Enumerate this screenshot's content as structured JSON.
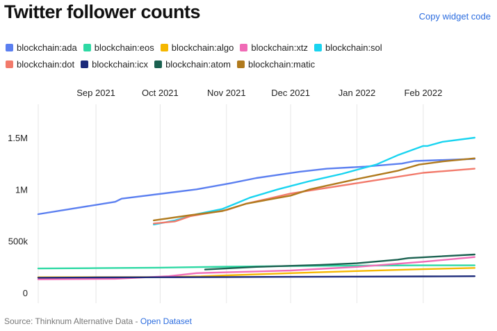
{
  "header": {
    "title": "Twitter follower counts",
    "copy_link": "Copy widget code"
  },
  "footer": {
    "source_text": "Source: Thinknum Alternative Data -",
    "source_link": "Open Dataset"
  },
  "chart_data": {
    "type": "line",
    "title": "Twitter follower counts",
    "xlabel": "",
    "ylabel": "",
    "grid": "vertical",
    "legend_position": "top-left",
    "x_range": [
      "2021-08-05",
      "2022-02-28"
    ],
    "ylim": [
      0,
      1800000
    ],
    "x_ticks": [
      {
        "date": "2021-09-01",
        "label": "Sep 2021"
      },
      {
        "date": "2021-10-01",
        "label": "Oct 2021"
      },
      {
        "date": "2021-11-01",
        "label": "Nov 2021"
      },
      {
        "date": "2021-12-01",
        "label": "Dec 2021"
      },
      {
        "date": "2022-01-01",
        "label": "Jan 2022"
      },
      {
        "date": "2022-02-01",
        "label": "Feb 2022"
      }
    ],
    "y_ticks": [
      {
        "value": 0,
        "label": "0"
      },
      {
        "value": 500000,
        "label": "500k"
      },
      {
        "value": 1000000,
        "label": "1M"
      },
      {
        "value": 1500000,
        "label": "1.5M"
      }
    ],
    "series": [
      {
        "name": "blockchain:ada",
        "color": "#5b7ff0",
        "points": [
          [
            "2021-08-05",
            760000
          ],
          [
            "2021-09-10",
            880000
          ],
          [
            "2021-09-13",
            910000
          ],
          [
            "2021-10-18",
            1000000
          ],
          [
            "2021-11-03",
            1060000
          ],
          [
            "2021-11-15",
            1110000
          ],
          [
            "2021-12-05",
            1170000
          ],
          [
            "2021-12-18",
            1200000
          ],
          [
            "2022-01-05",
            1220000
          ],
          [
            "2022-01-22",
            1250000
          ],
          [
            "2022-01-28",
            1275000
          ],
          [
            "2022-02-25",
            1295000
          ]
        ]
      },
      {
        "name": "blockchain:eos",
        "color": "#2ed9a4",
        "points": [
          [
            "2021-08-05",
            235000
          ],
          [
            "2021-09-01",
            238000
          ],
          [
            "2021-10-01",
            243000
          ],
          [
            "2021-11-01",
            252000
          ],
          [
            "2021-12-01",
            258000
          ],
          [
            "2022-01-01",
            262000
          ],
          [
            "2022-02-01",
            265000
          ],
          [
            "2022-02-25",
            265000
          ]
        ]
      },
      {
        "name": "blockchain:algo",
        "color": "#f5b700",
        "points": [
          [
            "2021-08-05",
            150000
          ],
          [
            "2021-10-01",
            152000
          ],
          [
            "2021-10-20",
            158000
          ],
          [
            "2021-11-01",
            168000
          ],
          [
            "2021-12-01",
            190000
          ],
          [
            "2022-01-01",
            210000
          ],
          [
            "2022-02-01",
            228000
          ],
          [
            "2022-02-25",
            240000
          ]
        ]
      },
      {
        "name": "blockchain:xtz",
        "color": "#f06bb6",
        "points": [
          [
            "2021-08-05",
            130000
          ],
          [
            "2021-09-10",
            135000
          ],
          [
            "2021-10-05",
            160000
          ],
          [
            "2021-10-18",
            190000
          ],
          [
            "2021-11-01",
            198000
          ],
          [
            "2021-12-01",
            215000
          ],
          [
            "2022-01-01",
            250000
          ],
          [
            "2022-02-01",
            300000
          ],
          [
            "2022-02-25",
            345000
          ]
        ]
      },
      {
        "name": "blockchain:sol",
        "color": "#19d4f0",
        "points": [
          [
            "2021-09-28",
            660000
          ],
          [
            "2021-10-08",
            700000
          ],
          [
            "2021-10-18",
            760000
          ],
          [
            "2021-10-30",
            810000
          ],
          [
            "2021-11-05",
            860000
          ],
          [
            "2021-11-12",
            920000
          ],
          [
            "2021-11-25",
            1000000
          ],
          [
            "2021-12-10",
            1080000
          ],
          [
            "2021-12-25",
            1150000
          ],
          [
            "2022-01-01",
            1190000
          ],
          [
            "2022-01-10",
            1240000
          ],
          [
            "2022-01-20",
            1330000
          ],
          [
            "2022-02-01",
            1420000
          ],
          [
            "2022-02-03",
            1420000
          ],
          [
            "2022-02-10",
            1460000
          ],
          [
            "2022-02-25",
            1500000
          ]
        ]
      },
      {
        "name": "blockchain:dot",
        "color": "#f27a6b",
        "points": [
          [
            "2021-09-28",
            670000
          ],
          [
            "2021-10-08",
            690000
          ],
          [
            "2021-10-15",
            740000
          ],
          [
            "2021-11-01",
            800000
          ],
          [
            "2021-11-10",
            860000
          ],
          [
            "2021-12-01",
            960000
          ],
          [
            "2022-01-01",
            1060000
          ],
          [
            "2022-02-01",
            1160000
          ],
          [
            "2022-02-25",
            1200000
          ]
        ]
      },
      {
        "name": "blockchain:icx",
        "color": "#1c2a7a",
        "points": [
          [
            "2021-08-05",
            145000
          ],
          [
            "2021-09-01",
            148000
          ],
          [
            "2021-10-01",
            150000
          ],
          [
            "2021-11-01",
            152000
          ],
          [
            "2021-12-01",
            154000
          ],
          [
            "2022-01-01",
            156000
          ],
          [
            "2022-02-01",
            158000
          ],
          [
            "2022-02-25",
            160000
          ]
        ]
      },
      {
        "name": "blockchain:atom",
        "color": "#1a6150",
        "points": [
          [
            "2021-10-22",
            225000
          ],
          [
            "2021-11-15",
            250000
          ],
          [
            "2021-12-15",
            270000
          ],
          [
            "2022-01-01",
            285000
          ],
          [
            "2022-01-20",
            320000
          ],
          [
            "2022-01-25",
            335000
          ],
          [
            "2022-02-25",
            370000
          ]
        ]
      },
      {
        "name": "blockchain:matic",
        "color": "#b07a1d",
        "points": [
          [
            "2021-09-28",
            700000
          ],
          [
            "2021-10-15",
            750000
          ],
          [
            "2021-10-30",
            790000
          ],
          [
            "2021-11-10",
            860000
          ],
          [
            "2021-12-01",
            940000
          ],
          [
            "2021-12-10",
            1000000
          ],
          [
            "2022-01-01",
            1100000
          ],
          [
            "2022-01-20",
            1180000
          ],
          [
            "2022-01-30",
            1240000
          ],
          [
            "2022-02-10",
            1270000
          ],
          [
            "2022-02-25",
            1300000
          ]
        ]
      }
    ]
  }
}
